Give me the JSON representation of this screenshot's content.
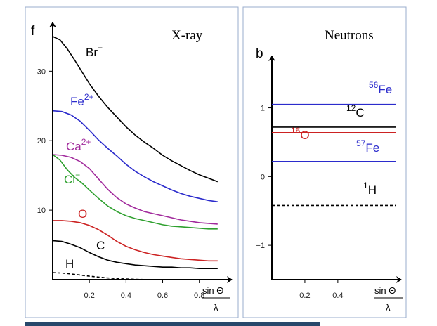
{
  "chart_data": [
    {
      "type": "line",
      "panel_letter": "f",
      "title": "X-ray",
      "xlabel_top": "sin Θ",
      "xlabel_bottom": "λ",
      "xlim": [
        0,
        0.92
      ],
      "ylim": [
        0,
        36
      ],
      "xticks": [
        "0.2",
        "0.4",
        "0.6",
        "0.8"
      ],
      "xtick_values": [
        0.2,
        0.4,
        0.6,
        0.8
      ],
      "yticks": [
        "10",
        "20",
        "30"
      ],
      "ytick_values": [
        10,
        20,
        30
      ],
      "series": [
        {
          "name": "Br",
          "sup": "−",
          "color": "#000000",
          "dashed": false,
          "x": [
            0.0,
            0.04,
            0.08,
            0.12,
            0.16,
            0.2,
            0.25,
            0.3,
            0.35,
            0.4,
            0.45,
            0.5,
            0.55,
            0.6,
            0.65,
            0.7,
            0.75,
            0.8,
            0.85,
            0.9
          ],
          "y": [
            35,
            34.5,
            33.2,
            31.6,
            29.9,
            28.2,
            26.4,
            24.8,
            23.4,
            22.0,
            20.8,
            19.8,
            18.9,
            17.9,
            17.1,
            16.4,
            15.7,
            15.1,
            14.6,
            14.1
          ]
        },
        {
          "name": "Fe",
          "sup": "2+",
          "color": "#2b2bcc",
          "dashed": false,
          "x": [
            0.0,
            0.05,
            0.1,
            0.15,
            0.2,
            0.25,
            0.3,
            0.35,
            0.4,
            0.45,
            0.5,
            0.55,
            0.6,
            0.65,
            0.7,
            0.75,
            0.8,
            0.85,
            0.9
          ],
          "y": [
            24.3,
            24.2,
            23.7,
            22.8,
            21.5,
            20.1,
            18.9,
            17.8,
            16.6,
            15.6,
            14.8,
            14.1,
            13.5,
            12.9,
            12.4,
            12.0,
            11.7,
            11.4,
            11.2
          ]
        },
        {
          "name": "Ca",
          "sup": "2+",
          "color": "#a12a9c",
          "dashed": false,
          "x": [
            0.0,
            0.05,
            0.1,
            0.15,
            0.2,
            0.25,
            0.3,
            0.35,
            0.4,
            0.45,
            0.5,
            0.55,
            0.6,
            0.65,
            0.7,
            0.75,
            0.8,
            0.85,
            0.9
          ],
          "y": [
            18.0,
            17.9,
            17.6,
            17.0,
            16.0,
            14.5,
            13.0,
            11.8,
            10.9,
            10.3,
            9.8,
            9.5,
            9.2,
            8.9,
            8.6,
            8.4,
            8.2,
            8.1,
            8.0
          ]
        },
        {
          "name": "Cl",
          "sup": "−",
          "color": "#2ea02e",
          "dashed": false,
          "x": [
            0.0,
            0.04,
            0.08,
            0.12,
            0.16,
            0.2,
            0.25,
            0.3,
            0.35,
            0.4,
            0.45,
            0.5,
            0.55,
            0.6,
            0.65,
            0.7,
            0.75,
            0.8,
            0.85,
            0.9
          ],
          "y": [
            18.0,
            17.2,
            15.8,
            14.7,
            13.9,
            12.9,
            11.7,
            10.6,
            9.8,
            9.2,
            8.8,
            8.5,
            8.2,
            7.9,
            7.7,
            7.6,
            7.5,
            7.4,
            7.3,
            7.3
          ]
        },
        {
          "name": "O",
          "sup": "",
          "color": "#cc2222",
          "dashed": false,
          "x": [
            0.0,
            0.05,
            0.1,
            0.15,
            0.2,
            0.25,
            0.3,
            0.35,
            0.4,
            0.45,
            0.5,
            0.55,
            0.6,
            0.65,
            0.7,
            0.75,
            0.8,
            0.85,
            0.9
          ],
          "y": [
            8.5,
            8.5,
            8.4,
            8.2,
            7.8,
            7.2,
            6.4,
            5.5,
            4.8,
            4.3,
            3.9,
            3.6,
            3.4,
            3.2,
            3.0,
            2.9,
            2.8,
            2.7,
            2.7
          ]
        },
        {
          "name": "C",
          "sup": "",
          "color": "#000000",
          "dashed": false,
          "x": [
            0.0,
            0.05,
            0.1,
            0.15,
            0.2,
            0.25,
            0.3,
            0.35,
            0.4,
            0.45,
            0.5,
            0.55,
            0.6,
            0.65,
            0.7,
            0.75,
            0.8,
            0.85,
            0.9
          ],
          "y": [
            5.6,
            5.5,
            5.1,
            4.6,
            3.9,
            3.3,
            2.8,
            2.5,
            2.3,
            2.1,
            2.0,
            1.9,
            1.8,
            1.8,
            1.7,
            1.7,
            1.6,
            1.6,
            1.6
          ]
        },
        {
          "name": "H",
          "sup": "",
          "color": "#000000",
          "dashed": true,
          "x": [
            0.0,
            0.05,
            0.1,
            0.15,
            0.2,
            0.25,
            0.3,
            0.35,
            0.4,
            0.45,
            0.5
          ],
          "y": [
            1.0,
            0.95,
            0.82,
            0.66,
            0.5,
            0.36,
            0.24,
            0.15,
            0.09,
            0.05,
            0.02
          ]
        }
      ]
    },
    {
      "type": "line",
      "panel_letter": "b",
      "title": "Neutrons",
      "xlabel_top": "sin Θ",
      "xlabel_bottom": "λ",
      "xlim": [
        0,
        0.75
      ],
      "ylim": [
        -1.5,
        1.65
      ],
      "xticks": [
        "0.2",
        "0.4"
      ],
      "xtick_values": [
        0.2,
        0.4
      ],
      "yticks": [
        "−1",
        "0",
        "1"
      ],
      "ytick_values": [
        -1,
        0,
        1
      ],
      "series": [
        {
          "name": "Fe",
          "sup": "56",
          "color": "#2b2bcc",
          "dashed": false,
          "y": 1.05
        },
        {
          "name": "C",
          "sup": "12",
          "color": "#000000",
          "dashed": false,
          "y": 0.72
        },
        {
          "name": "O",
          "sup": "16",
          "color": "#cc2222",
          "dashed": false,
          "y": 0.64
        },
        {
          "name": "Fe",
          "sup": "57",
          "color": "#2b2bcc",
          "dashed": false,
          "y": 0.22
        },
        {
          "name": "H",
          "sup": "1",
          "color": "#000000",
          "dashed": true,
          "y": -0.42
        }
      ]
    }
  ]
}
